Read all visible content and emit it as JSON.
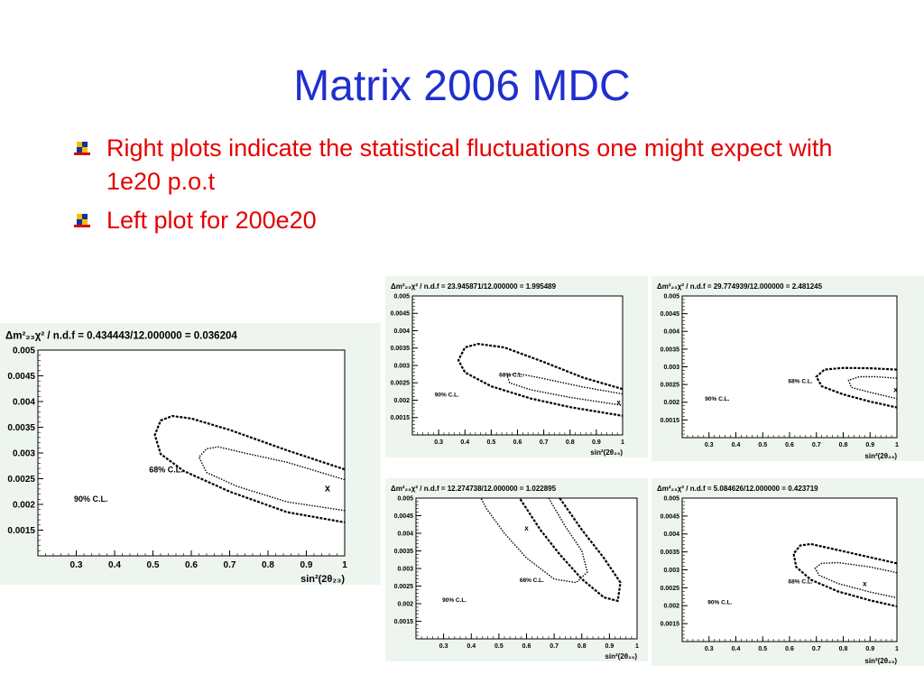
{
  "slide": {
    "title": "Matrix 2006 MDC",
    "bullets": [
      {
        "text": "Right plots indicate the statistical fluctuations one might expect with 1e20 p.o.t"
      },
      {
        "text": "Left plot for 200e20"
      }
    ],
    "colors": {
      "title": "#1f2fcf",
      "bullet_text": "#e60000",
      "panel_bg": "#eef5ee"
    }
  },
  "chart_data": [
    {
      "id": "left",
      "type": "contour",
      "title_prefix": "Δm²₂₃χ²",
      "title": "/ n.d.f = 0.434443/12.000000 = 0.036204",
      "xlabel": "sin²(2θ₂₃)",
      "ylabel": "",
      "xlim": [
        0.2,
        1.0
      ],
      "ylim": [
        0.001,
        0.005
      ],
      "xticks": [
        "0.3",
        "0.4",
        "0.5",
        "0.6",
        "0.7",
        "0.8",
        "0.9",
        "1"
      ],
      "yticks": [
        "0.0015",
        "0.002",
        "0.0025",
        "0.003",
        "0.0035",
        "0.004",
        "0.0045",
        "0.005"
      ],
      "best_fit": {
        "x": 0.955,
        "y": 0.00231,
        "label": "x"
      },
      "contours": [
        {
          "name": "90% C.L.",
          "points": [
            [
              1.0,
              0.00268
            ],
            [
              0.85,
              0.00305
            ],
            [
              0.7,
              0.00345
            ],
            [
              0.6,
              0.00367
            ],
            [
              0.55,
              0.00372
            ],
            [
              0.52,
              0.00363
            ],
            [
              0.505,
              0.00335
            ],
            [
              0.52,
              0.00298
            ],
            [
              0.58,
              0.00265
            ],
            [
              0.7,
              0.00225
            ],
            [
              0.85,
              0.00185
            ],
            [
              1.0,
              0.00165
            ]
          ],
          "closed": false
        },
        {
          "name": "68% C.L.",
          "points": [
            [
              1.0,
              0.00248
            ],
            [
              0.85,
              0.00282
            ],
            [
              0.75,
              0.00298
            ],
            [
              0.67,
              0.00312
            ],
            [
              0.64,
              0.00308
            ],
            [
              0.62,
              0.00292
            ],
            [
              0.64,
              0.00262
            ],
            [
              0.72,
              0.00235
            ],
            [
              0.85,
              0.00205
            ],
            [
              1.0,
              0.00188
            ]
          ],
          "closed": false
        }
      ],
      "cl_labels": [
        {
          "text": "68% C.L.",
          "x": 0.49,
          "y": 0.00262
        },
        {
          "text": "90% C.L.",
          "x": 0.294,
          "y": 0.00205
        }
      ]
    },
    {
      "id": "top-middle",
      "type": "contour",
      "title_prefix": "Δm²₂₃χ²",
      "title": "/ n.d.f = 23.945871/12.000000 = 1.995489",
      "xlabel": "sin²(2θ₂₃)",
      "ylabel": "",
      "xlim": [
        0.2,
        1.0
      ],
      "ylim": [
        0.001,
        0.005
      ],
      "xticks": [
        "0.3",
        "0.4",
        "0.5",
        "0.6",
        "0.7",
        "0.8",
        "0.9",
        "1"
      ],
      "yticks": [
        "0.0015",
        "0.002",
        "0.0025",
        "0.003",
        "0.0035",
        "0.004",
        "0.0045",
        "0.005"
      ],
      "best_fit": {
        "x": 0.985,
        "y": 0.00195,
        "label": "x"
      },
      "contours": [
        {
          "name": "90% C.L.",
          "points": [
            [
              1.0,
              0.00232
            ],
            [
              0.85,
              0.00265
            ],
            [
              0.7,
              0.0031
            ],
            [
              0.55,
              0.00352
            ],
            [
              0.45,
              0.00362
            ],
            [
              0.4,
              0.00352
            ],
            [
              0.375,
              0.00315
            ],
            [
              0.4,
              0.0028
            ],
            [
              0.5,
              0.0024
            ],
            [
              0.65,
              0.00205
            ],
            [
              0.8,
              0.0018
            ],
            [
              1.0,
              0.00155
            ]
          ],
          "closed": false
        },
        {
          "name": "68% C.L.",
          "points": [
            [
              1.0,
              0.00218
            ],
            [
              0.85,
              0.00238
            ],
            [
              0.7,
              0.00262
            ],
            [
              0.6,
              0.00277
            ],
            [
              0.56,
              0.00272
            ],
            [
              0.57,
              0.0025
            ],
            [
              0.65,
              0.0023
            ],
            [
              0.8,
              0.00208
            ],
            [
              1.0,
              0.00185
            ]
          ],
          "closed": false
        }
      ],
      "cl_labels": [
        {
          "text": "68% C.L.",
          "x": 0.53,
          "y": 0.00268
        },
        {
          "text": "90% C.L.",
          "x": 0.285,
          "y": 0.00211
        }
      ]
    },
    {
      "id": "top-right",
      "type": "contour",
      "title_prefix": "Δm²₂₃χ²",
      "title": "/ n.d.f = 29.774939/12.000000 = 2.481245",
      "xlabel": "sin²(2θ₂₃)",
      "ylabel": "",
      "xlim": [
        0.2,
        1.0
      ],
      "ylim": [
        0.001,
        0.005
      ],
      "xticks": [
        "0.3",
        "0.4",
        "0.5",
        "0.6",
        "0.7",
        "0.8",
        "0.9",
        "1"
      ],
      "yticks": [
        "0.0015",
        "0.002",
        "0.0025",
        "0.003",
        "0.0035",
        "0.004",
        "0.0045",
        "0.005"
      ],
      "best_fit": {
        "x": 0.995,
        "y": 0.00236,
        "label": "x"
      },
      "contours": [
        {
          "name": "90% C.L.",
          "points": [
            [
              1.0,
              0.00292
            ],
            [
              0.9,
              0.00296
            ],
            [
              0.8,
              0.00297
            ],
            [
              0.73,
              0.00292
            ],
            [
              0.7,
              0.00272
            ],
            [
              0.72,
              0.00245
            ],
            [
              0.8,
              0.00222
            ],
            [
              0.9,
              0.00202
            ],
            [
              1.0,
              0.00185
            ]
          ],
          "closed": false
        },
        {
          "name": "68% C.L.",
          "points": [
            [
              1.0,
              0.00268
            ],
            [
              0.92,
              0.00272
            ],
            [
              0.86,
              0.00272
            ],
            [
              0.82,
              0.00262
            ],
            [
              0.83,
              0.00242
            ],
            [
              0.9,
              0.00228
            ],
            [
              1.0,
              0.0021
            ]
          ],
          "closed": false
        }
      ],
      "cl_labels": [
        {
          "text": "68% C.L.",
          "x": 0.595,
          "y": 0.00254
        },
        {
          "text": "90% C.L.",
          "x": 0.285,
          "y": 0.00205
        }
      ]
    },
    {
      "id": "bottom-middle",
      "type": "contour",
      "title_prefix": "Δm²₂₃χ²",
      "title": "/ n.d.f = 12.274738/12.000000 = 1.022895",
      "xlabel": "sin²(2θ₂₃)",
      "ylabel": "",
      "xlim": [
        0.2,
        1.0
      ],
      "ylim": [
        0.001,
        0.005
      ],
      "xticks": [
        "0.3",
        "0.4",
        "0.5",
        "0.6",
        "0.7",
        "0.8",
        "0.9",
        "1"
      ],
      "yticks": [
        "0.0015",
        "0.002",
        "0.0025",
        "0.003",
        "0.0035",
        "0.004",
        "0.0045",
        "0.005"
      ],
      "best_fit": {
        "x": 0.6,
        "y": 0.00415,
        "label": "x"
      },
      "contours": [
        {
          "name": "90% C.L.",
          "points": [
            [
              0.72,
              0.005
            ],
            [
              0.8,
              0.0041
            ],
            [
              0.88,
              0.0033
            ],
            [
              0.94,
              0.0026
            ],
            [
              0.93,
              0.00208
            ],
            [
              0.88,
              0.00218
            ],
            [
              0.8,
              0.0027
            ],
            [
              0.72,
              0.0034
            ],
            [
              0.65,
              0.0041
            ],
            [
              0.6,
              0.0047
            ],
            [
              0.575,
              0.005
            ]
          ],
          "closed": false
        },
        {
          "name": "68% C.L.",
          "points": [
            [
              0.68,
              0.005
            ],
            [
              0.74,
              0.0042
            ],
            [
              0.8,
              0.0035
            ],
            [
              0.82,
              0.0029
            ],
            [
              0.78,
              0.0026
            ],
            [
              0.7,
              0.0027
            ],
            [
              0.6,
              0.0033
            ],
            [
              0.52,
              0.004
            ],
            [
              0.455,
              0.0047
            ],
            [
              0.435,
              0.005
            ]
          ],
          "closed": false
        }
      ],
      "cl_labels": [
        {
          "text": "68% C.L.",
          "x": 0.575,
          "y": 0.00262
        },
        {
          "text": "90% C.L.",
          "x": 0.295,
          "y": 0.00205
        }
      ]
    },
    {
      "id": "bottom-right",
      "type": "contour",
      "title_prefix": "Δm²₂₃χ²",
      "title": "/ n.d.f = 5.084626/12.000000 = 0.423719",
      "xlabel": "sin²(2θ₂₃)",
      "ylabel": "",
      "xlim": [
        0.2,
        1.0
      ],
      "ylim": [
        0.001,
        0.005
      ],
      "xticks": [
        "0.3",
        "0.4",
        "0.5",
        "0.6",
        "0.7",
        "0.8",
        "0.9",
        "1"
      ],
      "yticks": [
        "0.0015",
        "0.002",
        "0.0025",
        "0.003",
        "0.0035",
        "0.004",
        "0.0045",
        "0.005"
      ],
      "best_fit": {
        "x": 0.88,
        "y": 0.00262,
        "label": "x"
      },
      "contours": [
        {
          "name": "90% C.L.",
          "points": [
            [
              1.0,
              0.00318
            ],
            [
              0.9,
              0.00335
            ],
            [
              0.78,
              0.00355
            ],
            [
              0.68,
              0.00372
            ],
            [
              0.64,
              0.00368
            ],
            [
              0.615,
              0.00345
            ],
            [
              0.625,
              0.00308
            ],
            [
              0.68,
              0.00272
            ],
            [
              0.78,
              0.0024
            ],
            [
              0.9,
              0.00215
            ],
            [
              1.0,
              0.00198
            ]
          ],
          "closed": false
        },
        {
          "name": "68% C.L.",
          "points": [
            [
              1.0,
              0.00292
            ],
            [
              0.9,
              0.00308
            ],
            [
              0.78,
              0.0032
            ],
            [
              0.72,
              0.00318
            ],
            [
              0.695,
              0.00305
            ],
            [
              0.71,
              0.00285
            ],
            [
              0.78,
              0.00262
            ],
            [
              0.9,
              0.00238
            ],
            [
              1.0,
              0.00222
            ]
          ],
          "closed": false
        }
      ],
      "cl_labels": [
        {
          "text": "68% C.L.",
          "x": 0.595,
          "y": 0.00262
        },
        {
          "text": "90% C.L.",
          "x": 0.295,
          "y": 0.00205
        }
      ]
    }
  ]
}
